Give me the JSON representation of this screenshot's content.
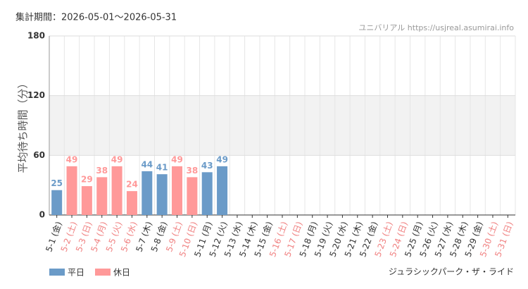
{
  "chart_data": {
    "type": "bar",
    "title": "集計期間：2026-05-01〜2026-05-31",
    "source": "ユニバリアル  https://usjreal.asumirai.info",
    "attraction": "ジュラシックパーク・ザ・ライド",
    "y_label": "平均待ち時間（分）",
    "categories": [
      "5-1 (金)",
      "5-2 (土)",
      "5-3 (日)",
      "5-4 (月)",
      "5-5 (火)",
      "5-6 (水)",
      "5-7 (木)",
      "5-8 (金)",
      "5-9 (土)",
      "5-10 (日)",
      "5-11 (月)",
      "5-12 (火)",
      "5-13 (水)",
      "5-14 (木)",
      "5-15 (金)",
      "5-16 (土)",
      "5-17 (日)",
      "5-18 (月)",
      "5-19 (火)",
      "5-20 (水)",
      "5-21 (木)",
      "5-22 (金)",
      "5-23 (土)",
      "5-24 (日)",
      "5-25 (月)",
      "5-26 (火)",
      "5-27 (水)",
      "5-28 (木)",
      "5-29 (金)",
      "5-30 (土)",
      "5-31 (日)"
    ],
    "category_colors": [
      "#333333",
      "#f08080",
      "#f08080",
      "#f08080",
      "#f08080",
      "#f08080",
      "#333333",
      "#333333",
      "#f08080",
      "#f08080",
      "#333333",
      "#333333",
      "#333333",
      "#333333",
      "#333333",
      "#f08080",
      "#f08080",
      "#333333",
      "#333333",
      "#333333",
      "#333333",
      "#333333",
      "#f08080",
      "#f08080",
      "#333333",
      "#333333",
      "#333333",
      "#333333",
      "#333333",
      "#f08080",
      "#f08080"
    ],
    "series": [
      {
        "name": "平日",
        "color": "#6b9bc8",
        "values": [
          25,
          null,
          null,
          null,
          null,
          null,
          44,
          41,
          null,
          null,
          43,
          49,
          null,
          null,
          null,
          null,
          null,
          null,
          null,
          null,
          null,
          null,
          null,
          null,
          null,
          null,
          null,
          null,
          null,
          null,
          null
        ]
      },
      {
        "name": "休日",
        "color": "#ff9999",
        "values": [
          null,
          49,
          29,
          38,
          49,
          24,
          null,
          null,
          49,
          38,
          null,
          null,
          null,
          null,
          null,
          null,
          null,
          null,
          null,
          null,
          null,
          null,
          null,
          null,
          null,
          null,
          null,
          null,
          null,
          null,
          null
        ]
      }
    ],
    "ylim": [
      0,
      180
    ],
    "yticks": [
      0,
      60,
      120,
      180
    ],
    "grid": true
  }
}
